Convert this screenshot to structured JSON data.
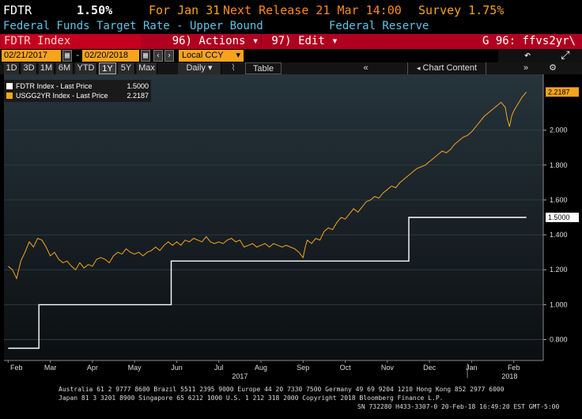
{
  "ticker": {
    "symbol": "FDTR",
    "last": "1.50%",
    "for_label": "For Jan 31",
    "next_release": "Next Release 21 Mar 14:00",
    "survey": "Survey 1.75%"
  },
  "subtitle": {
    "description": "Federal Funds Target Rate - Upper Bound",
    "source": "Federal Reserve"
  },
  "toolbar": {
    "title": "FDTR Index",
    "actions_num": "96)",
    "actions_label": "Actions",
    "edit_num": "97)",
    "edit_label": "Edit",
    "command": "G 96: ffvs2yr\\"
  },
  "dates": {
    "start": "02/21/2017",
    "end": "02/20/2018",
    "currency": "Local CCY"
  },
  "ranges": {
    "items": [
      "1D",
      "3D",
      "1M",
      "6M",
      "YTD",
      "1Y",
      "5Y",
      "Max"
    ],
    "active": "1Y",
    "frequency": "Daily",
    "table_label": "Table",
    "chart_content_label": "Chart Content"
  },
  "legend": {
    "entries": [
      {
        "name": "FDTR Index - Last Price",
        "value": "1.5000",
        "color": "#ffffff"
      },
      {
        "name": "USGG2YR Index - Last Price",
        "value": "2.2187",
        "color": "#f7a41c"
      }
    ]
  },
  "chart_data": {
    "type": "line",
    "ylim": [
      0.68,
      2.32
    ],
    "yticks": [
      "0.800",
      "1.000",
      "1.200",
      "1.400",
      "1.600",
      "1.800",
      "2.000"
    ],
    "month_labels": [
      "Feb",
      "Mar",
      "Apr",
      "May",
      "Jun",
      "Jul",
      "Aug",
      "Sep",
      "Oct",
      "Nov",
      "Dec",
      "Jan",
      "Feb"
    ],
    "year_labels": [
      "2017",
      "2018"
    ],
    "series": [
      {
        "name": "FDTR Index - Last Price",
        "color": "#ffffff",
        "step": true,
        "last_label": "1.5000",
        "points": [
          [
            0,
            0.75
          ],
          [
            0.73,
            0.75
          ],
          [
            0.73,
            1.0
          ],
          [
            3.87,
            1.0
          ],
          [
            3.87,
            1.25
          ],
          [
            9.51,
            1.25
          ],
          [
            9.51,
            1.5
          ],
          [
            12.3,
            1.5
          ]
        ]
      },
      {
        "name": "USGG2YR Index - Last Price",
        "color": "#f7a41c",
        "step": false,
        "last_label": "2.2187",
        "points": [
          [
            0,
            1.22
          ],
          [
            0.1,
            1.2
          ],
          [
            0.2,
            1.15
          ],
          [
            0.3,
            1.25
          ],
          [
            0.4,
            1.3
          ],
          [
            0.5,
            1.36
          ],
          [
            0.6,
            1.33
          ],
          [
            0.7,
            1.38
          ],
          [
            0.8,
            1.37
          ],
          [
            0.9,
            1.33
          ],
          [
            1.0,
            1.28
          ],
          [
            1.1,
            1.3
          ],
          [
            1.2,
            1.26
          ],
          [
            1.3,
            1.24
          ],
          [
            1.4,
            1.25
          ],
          [
            1.5,
            1.22
          ],
          [
            1.6,
            1.2
          ],
          [
            1.7,
            1.24
          ],
          [
            1.8,
            1.21
          ],
          [
            1.9,
            1.23
          ],
          [
            2.0,
            1.22
          ],
          [
            2.1,
            1.26
          ],
          [
            2.2,
            1.27
          ],
          [
            2.3,
            1.26
          ],
          [
            2.4,
            1.24
          ],
          [
            2.5,
            1.28
          ],
          [
            2.6,
            1.3
          ],
          [
            2.7,
            1.29
          ],
          [
            2.8,
            1.32
          ],
          [
            2.9,
            1.3
          ],
          [
            3.0,
            1.29
          ],
          [
            3.1,
            1.3
          ],
          [
            3.2,
            1.28
          ],
          [
            3.3,
            1.3
          ],
          [
            3.4,
            1.31
          ],
          [
            3.5,
            1.33
          ],
          [
            3.6,
            1.31
          ],
          [
            3.7,
            1.34
          ],
          [
            3.8,
            1.36
          ],
          [
            3.9,
            1.34
          ],
          [
            4.0,
            1.36
          ],
          [
            4.1,
            1.34
          ],
          [
            4.2,
            1.37
          ],
          [
            4.3,
            1.36
          ],
          [
            4.4,
            1.38
          ],
          [
            4.5,
            1.37
          ],
          [
            4.6,
            1.36
          ],
          [
            4.7,
            1.39
          ],
          [
            4.8,
            1.36
          ],
          [
            4.9,
            1.35
          ],
          [
            5.0,
            1.36
          ],
          [
            5.1,
            1.35
          ],
          [
            5.2,
            1.37
          ],
          [
            5.3,
            1.38
          ],
          [
            5.4,
            1.36
          ],
          [
            5.5,
            1.37
          ],
          [
            5.6,
            1.33
          ],
          [
            5.7,
            1.34
          ],
          [
            5.8,
            1.35
          ],
          [
            5.9,
            1.33
          ],
          [
            6.0,
            1.34
          ],
          [
            6.1,
            1.35
          ],
          [
            6.2,
            1.33
          ],
          [
            6.3,
            1.35
          ],
          [
            6.4,
            1.34
          ],
          [
            6.5,
            1.33
          ],
          [
            6.6,
            1.34
          ],
          [
            6.7,
            1.33
          ],
          [
            6.8,
            1.32
          ],
          [
            6.9,
            1.3
          ],
          [
            7.0,
            1.27
          ],
          [
            7.05,
            1.33
          ],
          [
            7.1,
            1.37
          ],
          [
            7.2,
            1.35
          ],
          [
            7.3,
            1.38
          ],
          [
            7.4,
            1.37
          ],
          [
            7.5,
            1.42
          ],
          [
            7.6,
            1.44
          ],
          [
            7.7,
            1.43
          ],
          [
            7.8,
            1.47
          ],
          [
            7.9,
            1.5
          ],
          [
            8.0,
            1.49
          ],
          [
            8.1,
            1.52
          ],
          [
            8.2,
            1.55
          ],
          [
            8.3,
            1.53
          ],
          [
            8.4,
            1.56
          ],
          [
            8.5,
            1.59
          ],
          [
            8.6,
            1.6
          ],
          [
            8.7,
            1.62
          ],
          [
            8.8,
            1.61
          ],
          [
            8.9,
            1.64
          ],
          [
            9.0,
            1.66
          ],
          [
            9.1,
            1.68
          ],
          [
            9.2,
            1.67
          ],
          [
            9.3,
            1.7
          ],
          [
            9.4,
            1.72
          ],
          [
            9.5,
            1.74
          ],
          [
            9.6,
            1.76
          ],
          [
            9.7,
            1.78
          ],
          [
            9.8,
            1.79
          ],
          [
            9.9,
            1.8
          ],
          [
            10.0,
            1.82
          ],
          [
            10.1,
            1.84
          ],
          [
            10.2,
            1.86
          ],
          [
            10.3,
            1.88
          ],
          [
            10.4,
            1.87
          ],
          [
            10.5,
            1.89
          ],
          [
            10.6,
            1.92
          ],
          [
            10.7,
            1.94
          ],
          [
            10.8,
            1.96
          ],
          [
            10.9,
            1.97
          ],
          [
            11.0,
            1.99
          ],
          [
            11.1,
            2.02
          ],
          [
            11.2,
            2.05
          ],
          [
            11.3,
            2.08
          ],
          [
            11.4,
            2.1
          ],
          [
            11.5,
            2.12
          ],
          [
            11.6,
            2.14
          ],
          [
            11.7,
            2.16
          ],
          [
            11.8,
            2.13
          ],
          [
            11.85,
            2.06
          ],
          [
            11.9,
            2.02
          ],
          [
            11.95,
            2.08
          ],
          [
            12.0,
            2.11
          ],
          [
            12.1,
            2.15
          ],
          [
            12.2,
            2.19
          ],
          [
            12.3,
            2.2187
          ]
        ]
      }
    ]
  },
  "footer": {
    "line1": "Australia 61 2 9777 8600 Brazil 5511 2395 9000 Europe 44 20 7330 7500 Germany 49 69 9204 1210 Hong Kong 852 2977 6000",
    "line2": "Japan 81 3 3201 8900       Singapore 65 6212 1000       U.S. 1 212 318 2000           Copyright 2018 Bloomberg Finance L.P.",
    "line3": "SN 732280 H433-3307-0 20-Feb-18 16:49:20 EST  GMT-5:00"
  }
}
